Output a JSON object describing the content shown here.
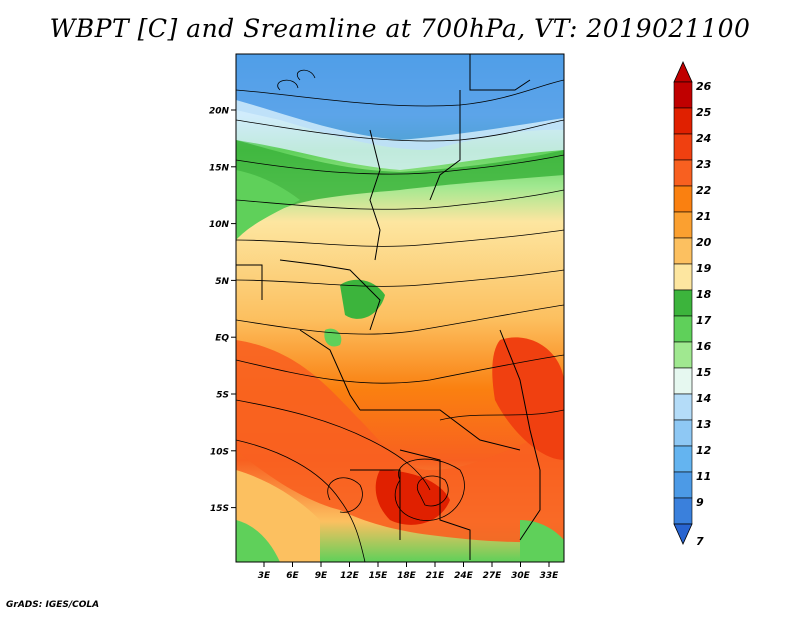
{
  "title": "WBPT [C] and Sreamline at 700hPa, VT: 2019021100",
  "credit": "GrADS: IGES/COLA",
  "map": {
    "lat_labels": [
      "20N",
      "15N",
      "10N",
      "5N",
      "EQ",
      "5S",
      "10S",
      "15S"
    ],
    "lon_labels": [
      "3E",
      "6E",
      "9E",
      "12E",
      "15E",
      "18E",
      "21E",
      "24E",
      "27E",
      "30E",
      "33E"
    ]
  },
  "colorbar": {
    "labels": [
      "26",
      "25",
      "24",
      "23",
      "22",
      "21",
      "20",
      "19",
      "18",
      "17",
      "16",
      "15",
      "14",
      "13",
      "12",
      "11",
      "9",
      "7"
    ],
    "colors": [
      "#c00000",
      "#e02000",
      "#f04010",
      "#f86020",
      "#fa8010",
      "#fba030",
      "#fcc060",
      "#fde6a0",
      "#3cb43c",
      "#5fd05a",
      "#a0e890",
      "#e6f8f0",
      "#b4dcf8",
      "#8ec8f4",
      "#64b4f0",
      "#4c9ae6",
      "#3a80dc",
      "#2864d0"
    ]
  }
}
